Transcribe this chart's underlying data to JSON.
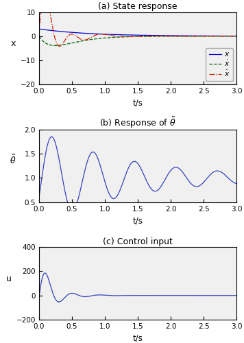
{
  "title_a": "(a) State response",
  "title_b": "(b) Response of $\\tilde{\\theta}$",
  "title_c": "(c) Control input",
  "xlabel": "t/s",
  "ylabel_a": "x",
  "ylabel_b": "$\\tilde{\\theta}$",
  "ylabel_c": "u",
  "xlim": [
    0,
    3
  ],
  "ylim_a": [
    -20,
    10
  ],
  "ylim_b": [
    0.5,
    2.0
  ],
  "ylim_c": [
    -200,
    400
  ],
  "xticks": [
    0,
    0.5,
    1.0,
    1.5,
    2.0,
    2.5,
    3.0
  ],
  "yticks_a": [
    -20,
    -10,
    0,
    10
  ],
  "yticks_b": [
    0.5,
    1.0,
    1.5,
    2.0
  ],
  "yticks_c": [
    -200,
    0,
    200,
    400
  ],
  "line_color_x": "#0000cd",
  "line_color_xdot": "#006400",
  "line_color_xddot": "#cc2200",
  "line_color_theta": "#3344bb",
  "line_color_u": "#3344bb",
  "legend_labels": [
    "$x$",
    "$\\dot{x}$",
    "$\\ddot{x}$"
  ],
  "figsize": [
    3.56,
    5.0
  ],
  "dpi": 100,
  "bg_color": "#f0f0f0"
}
